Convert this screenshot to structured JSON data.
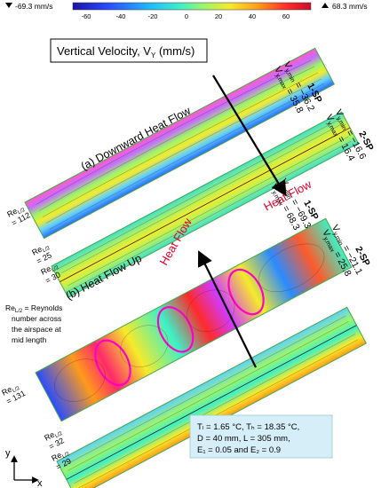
{
  "colorbar": {
    "min_label": "-69.3 mm/s",
    "max_label": "68.3 mm/s",
    "ticks": [
      "-60",
      "-40",
      "-20",
      "0",
      "20",
      "40",
      "60"
    ],
    "colors": [
      "#1b12a8",
      "#2a4bff",
      "#1fb8ff",
      "#3ef0c6",
      "#9cf56a",
      "#f6ea2a",
      "#ff9a1a",
      "#ff2a2a",
      "#c8102a"
    ]
  },
  "title": {
    "text": "Vertical Velocity, V",
    "subscript": "Y",
    "unit": "(mm/s)"
  },
  "labels": {
    "downward": "(a) Downward Heat Flow",
    "upward": "(b) Heat Flow Up",
    "heat_flow": "Heat Flow",
    "re_note_line1": "Re",
    "re_note_sub": "L/2",
    "re_note_rest1": " = Reynolds",
    "re_note_line2": "number across",
    "re_note_line3": "the airspace at",
    "re_note_line4": "mid length"
  },
  "panels": [
    {
      "sp": "1-SP",
      "vmin_label": "V",
      "vmin_sub": "y,min",
      "vmin_val": "= −36.2",
      "vmax_label": "V",
      "vmax_sub": "y,max",
      "vmax_val": "= 35.8"
    },
    {
      "sp": "2-SP",
      "vmin_label": "V",
      "vmin_sub": "y,min",
      "vmin_val": "= −16.6",
      "vmax_label": "V",
      "vmax_sub": "y,max",
      "vmax_val": "= 16.4"
    },
    {
      "sp": "1-SP",
      "vmin_label": "V",
      "vmin_sub": "y,min",
      "vmin_val": "= −69.3",
      "vmax_label": "V",
      "vmax_sub": "y,max",
      "vmax_val": "= 68.3"
    },
    {
      "sp": "2-SP",
      "vmin_label": "V",
      "vmin_sub": "y,min",
      "vmin_val": "= −21.1",
      "vmax_label": "V",
      "vmax_sub": "y,max",
      "vmax_val": "= 25.8"
    }
  ],
  "reynolds": [
    {
      "prefix": "Re",
      "sub": "L/2",
      "value": "= 112"
    },
    {
      "prefix": "Re",
      "sub": "L/2",
      "value": "= 25"
    },
    {
      "prefix": "Re",
      "sub": "L/2",
      "value": "= 30"
    },
    {
      "prefix": "Re",
      "sub": "L/2",
      "value": "= 131"
    },
    {
      "prefix": "Re",
      "sub": "L/2",
      "value": "= 32"
    },
    {
      "prefix": "Re",
      "sub": "L/2",
      "value": "= 29"
    }
  ],
  "conditions": {
    "line1": "Tₗ = 1.65 °C, Tₕ = 18.35 °C,",
    "line2": "D = 40 mm, L = 305 mm,",
    "line3": "E₁ = 0.05 and E₂ = 0.9"
  },
  "axes": {
    "y": "y",
    "x": "x"
  }
}
